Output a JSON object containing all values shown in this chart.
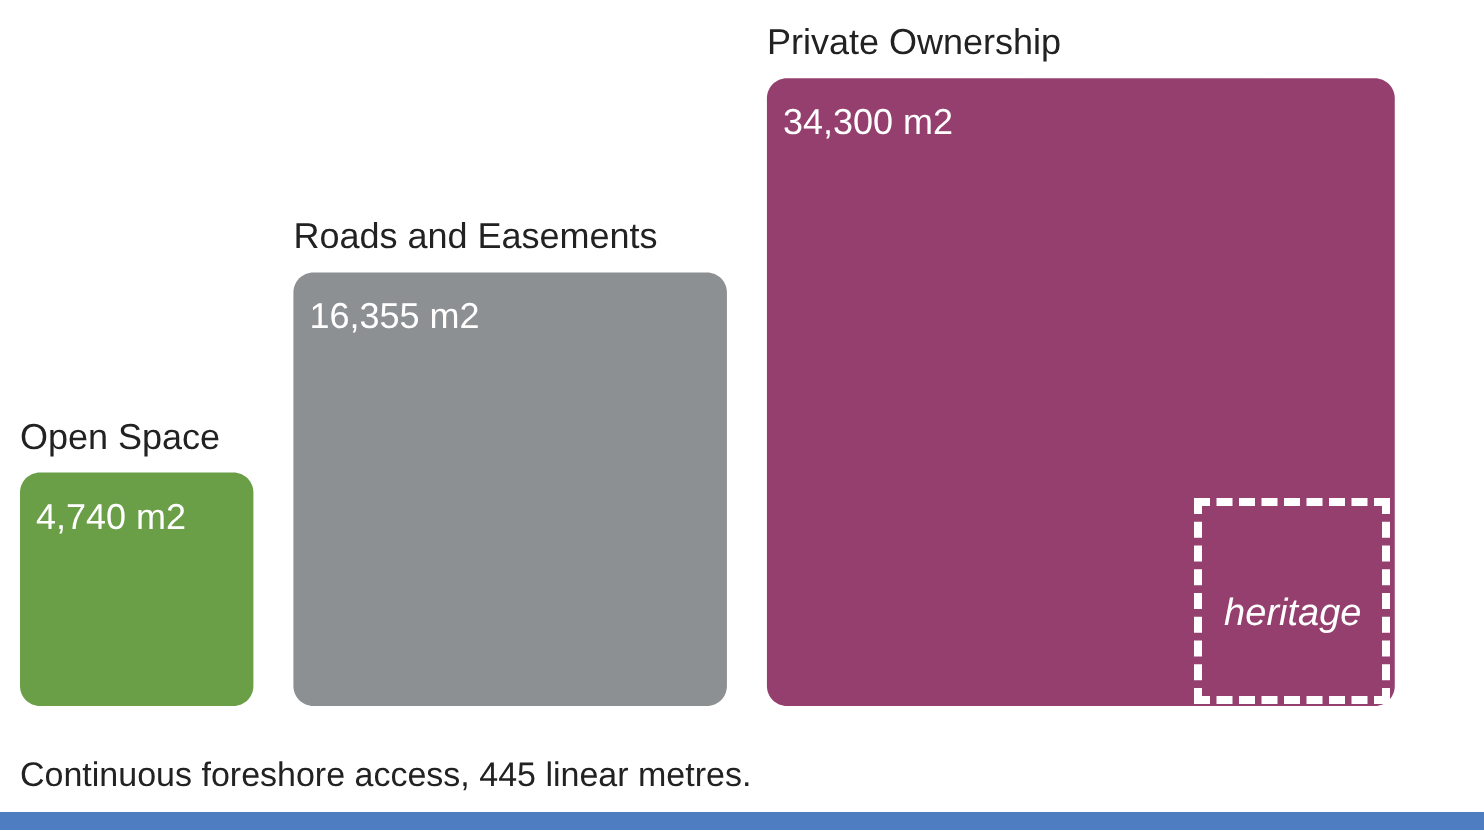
{
  "chart_data": {
    "type": "other",
    "categories": [
      "Open Space",
      "Roads and Easements",
      "Private Ownership"
    ],
    "values": [
      4740,
      16355,
      34300
    ],
    "value_labels": [
      "4,740 m2",
      "16,355 m2",
      "34,300 m2"
    ],
    "colors": [
      "#6a9f48",
      "#8d9093",
      "#953f6e"
    ],
    "annotations": [
      "heritage",
      "Continuous foreshore access, 445 linear metres."
    ]
  }
}
